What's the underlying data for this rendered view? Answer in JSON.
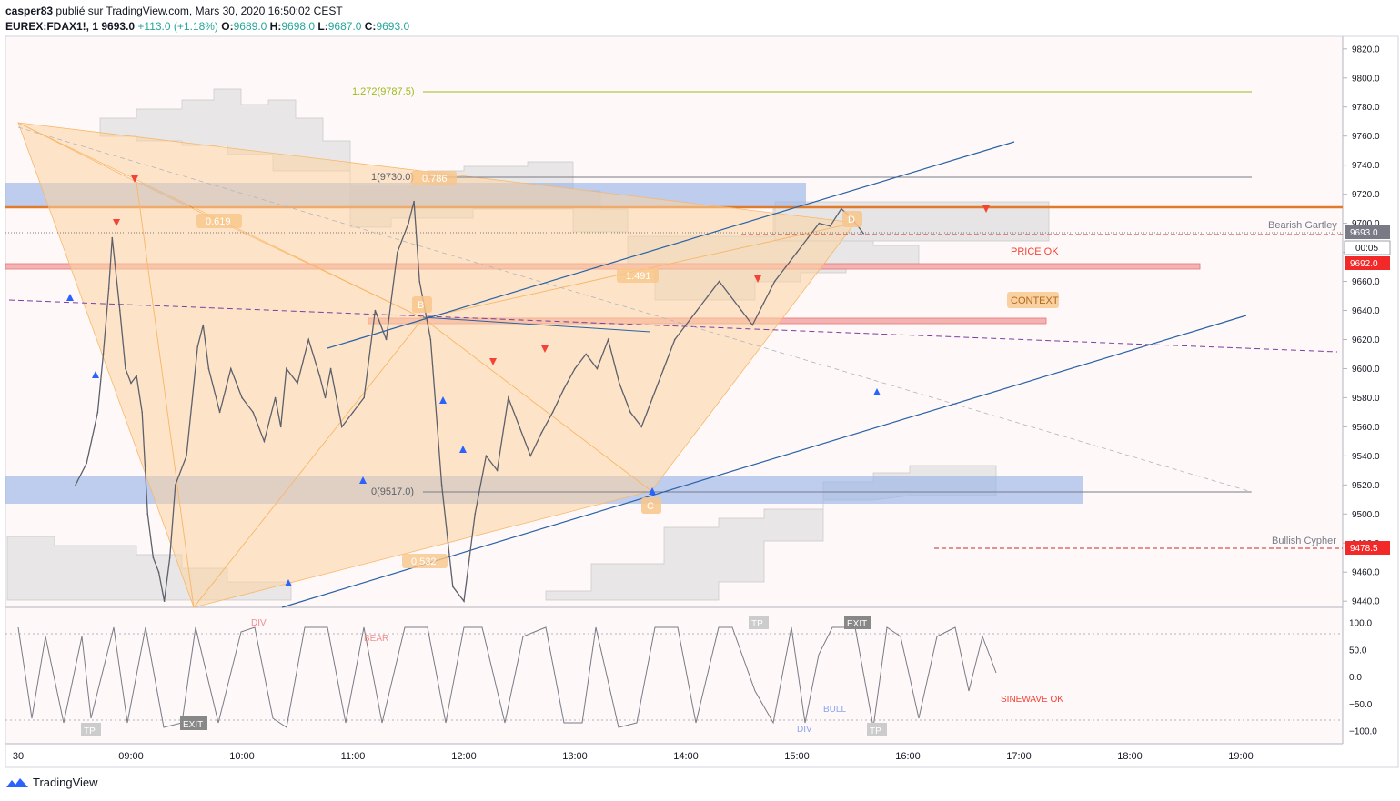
{
  "header": {
    "publisher": "casper83",
    "published_text": "publié sur TradingView.com, Mars 30, 2020 16:50:02 CEST",
    "symbol": "EUREX:FDAX1!, 1",
    "last": "9693.0",
    "change": "+113.0 (+1.18%)",
    "o_label": "O:",
    "o": "9689.0",
    "h_label": "H:",
    "h": "9698.0",
    "l_label": "L:",
    "l": "9687.0",
    "c_label": "C:",
    "c": "9693.0"
  },
  "footer": {
    "brand": "TradingView"
  },
  "colors": {
    "candle": "#5d606b",
    "pattern_fill": "#fbd3a1",
    "blue_zone": "#9bb5e8",
    "red_zone": "#f4b3b3",
    "trendline": "#2962a6",
    "price_label_red": "#f22929",
    "price_label_gray": "#787b86",
    "fib_green": "#9cbb1d",
    "orange_line": "#e07b2b"
  },
  "chart_data": [
    {
      "type": "line",
      "title": "EUREX:FDAX1!, 1",
      "xlabel": "",
      "ylabel": "",
      "x_ticks": [
        "30",
        "09:00",
        "10:00",
        "11:00",
        "12:00",
        "13:00",
        "14:00",
        "15:00",
        "16:00",
        "17:00",
        "18:00",
        "19:00"
      ],
      "y_ticks": [
        9440,
        9460,
        9480,
        9500,
        9520,
        9540,
        9560,
        9580,
        9600,
        9620,
        9640,
        9660,
        9680,
        9700,
        9720,
        9740,
        9760,
        9780,
        9800,
        9820
      ],
      "ylim": [
        9437,
        9823
      ],
      "series": [
        {
          "values": [
            [
              8.5,
              9520
            ],
            [
              8.6,
              9535
            ],
            [
              8.7,
              9570
            ],
            [
              8.75,
              9610
            ],
            [
              8.8,
              9655
            ],
            [
              8.83,
              9690
            ],
            [
              8.9,
              9640
            ],
            [
              8.95,
              9600
            ],
            [
              9.0,
              9590
            ],
            [
              9.05,
              9595
            ],
            [
              9.1,
              9570
            ],
            [
              9.15,
              9500
            ],
            [
              9.2,
              9470
            ],
            [
              9.25,
              9460
            ],
            [
              9.3,
              9440
            ],
            [
              9.35,
              9470
            ],
            [
              9.4,
              9520
            ],
            [
              9.5,
              9540
            ],
            [
              9.6,
              9615
            ],
            [
              9.65,
              9630
            ],
            [
              9.7,
              9600
            ],
            [
              9.8,
              9570
            ],
            [
              9.9,
              9600
            ],
            [
              10.0,
              9580
            ],
            [
              10.1,
              9570
            ],
            [
              10.2,
              9550
            ],
            [
              10.3,
              9580
            ],
            [
              10.35,
              9560
            ],
            [
              10.4,
              9600
            ],
            [
              10.5,
              9590
            ],
            [
              10.6,
              9620
            ],
            [
              10.7,
              9595
            ],
            [
              10.75,
              9580
            ],
            [
              10.8,
              9600
            ],
            [
              10.9,
              9560
            ],
            [
              11.0,
              9570
            ],
            [
              11.1,
              9580
            ],
            [
              11.2,
              9640
            ],
            [
              11.3,
              9620
            ],
            [
              11.4,
              9680
            ],
            [
              11.5,
              9700
            ],
            [
              11.55,
              9715
            ],
            [
              11.6,
              9660
            ],
            [
              11.7,
              9620
            ],
            [
              11.8,
              9520
            ],
            [
              11.9,
              9450
            ],
            [
              12.0,
              9440
            ],
            [
              12.1,
              9500
            ],
            [
              12.2,
              9540
            ],
            [
              12.3,
              9530
            ],
            [
              12.4,
              9580
            ],
            [
              12.5,
              9560
            ],
            [
              12.6,
              9540
            ],
            [
              12.7,
              9556
            ],
            [
              12.8,
              9570
            ],
            [
              12.9,
              9586
            ],
            [
              13.0,
              9600
            ],
            [
              13.1,
              9610
            ],
            [
              13.2,
              9600
            ],
            [
              13.3,
              9620
            ],
            [
              13.4,
              9590
            ],
            [
              13.5,
              9570
            ],
            [
              13.6,
              9560
            ],
            [
              13.7,
              9580
            ],
            [
              13.8,
              9600
            ],
            [
              13.9,
              9620
            ],
            [
              14.0,
              9630
            ],
            [
              14.1,
              9640
            ],
            [
              14.2,
              9650
            ],
            [
              14.3,
              9660
            ],
            [
              14.4,
              9650
            ],
            [
              14.5,
              9640
            ],
            [
              14.6,
              9630
            ],
            [
              14.7,
              9645
            ],
            [
              14.8,
              9660
            ],
            [
              14.9,
              9670
            ],
            [
              15.0,
              9680
            ],
            [
              15.1,
              9690
            ],
            [
              15.2,
              9700
            ],
            [
              15.3,
              9698
            ],
            [
              15.4,
              9710
            ],
            [
              15.5,
              9703
            ],
            [
              15.6,
              9693
            ]
          ]
        }
      ],
      "annotations": [
        "1.272(9787.5)",
        "1(9730.0)",
        "0.786",
        "0.619",
        "1.491",
        "0(9517.0)",
        "0.532",
        "D",
        "B",
        "C",
        "PRICE OK",
        "CONTEXT",
        "Bearish Gartley",
        "Bullish Cypher"
      ],
      "price_labels": [
        {
          "text": "9693.0",
          "kind": "gray"
        },
        {
          "text": "00:05",
          "kind": "white"
        },
        {
          "text": "9692.0",
          "kind": "red"
        },
        {
          "text": "9478.5",
          "kind": "red"
        }
      ]
    },
    {
      "type": "line",
      "title": "",
      "y_ticks": [
        "100.0",
        "50.0",
        "0.0",
        "−50.0",
        "−100.0"
      ],
      "ylim": [
        -110,
        110
      ],
      "annotations": [
        "DIV",
        "BEAR",
        "TP",
        "EXIT",
        "TP",
        "EXIT",
        "BULL",
        "DIV",
        "TP",
        "SINEWAVE OK"
      ]
    }
  ]
}
